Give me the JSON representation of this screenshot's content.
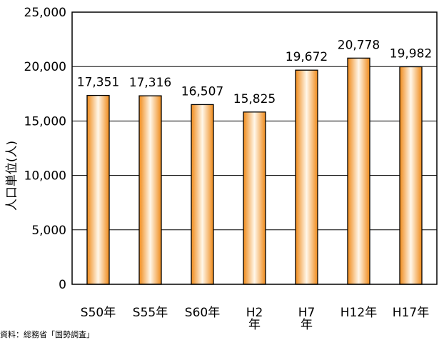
{
  "chart_data": {
    "type": "bar",
    "categories": [
      "S50年",
      "S55年",
      "S60年",
      "H2年",
      "H7年",
      "H12年",
      "H17年"
    ],
    "values": [
      17351,
      17316,
      16507,
      15825,
      19672,
      20778,
      19982
    ],
    "data_labels": [
      "17,351",
      "17,316",
      "16,507",
      "15,825",
      "19,672",
      "20,778",
      "19,982"
    ],
    "ylabel": "人口単位(人)",
    "xlabel": "",
    "title": "",
    "ylim": [
      0,
      25000
    ],
    "yticks": [
      0,
      5000,
      10000,
      15000,
      20000,
      25000
    ],
    "ytick_labels": [
      "0",
      "5,000",
      "10,000",
      "15,000",
      "20,000",
      "25,000"
    ],
    "grid": "horizontal",
    "legend": "none",
    "bar_colors": {
      "edge": "#ef8a1a",
      "center": "#fff7ea",
      "outline": "#000000"
    }
  },
  "source_note": "資料：総務省「国勢調査」"
}
